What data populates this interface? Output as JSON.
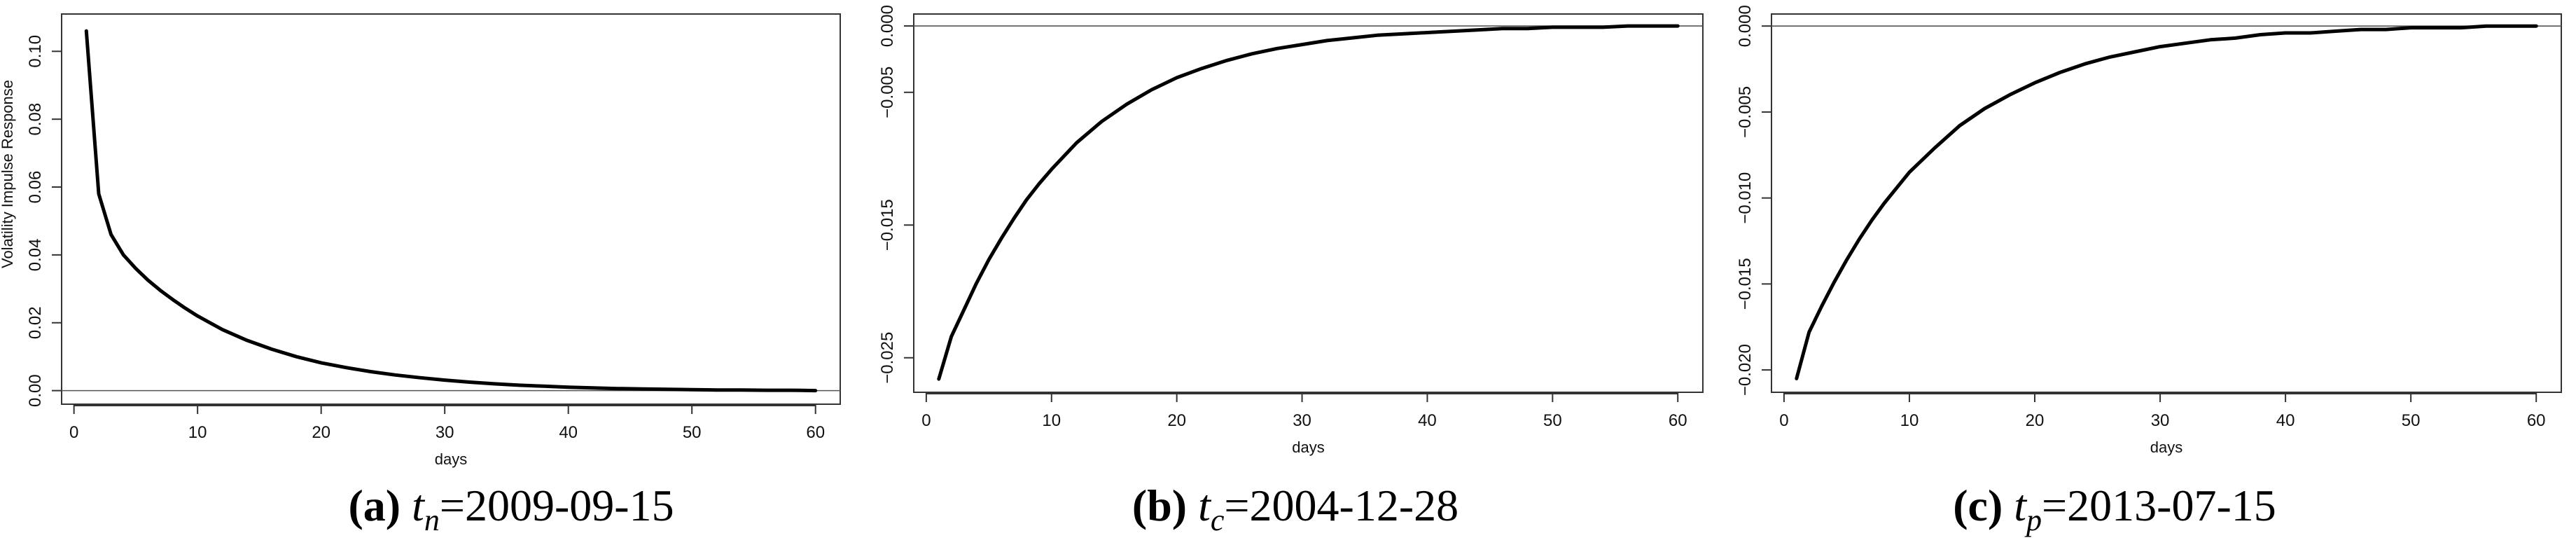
{
  "chart_data": [
    {
      "type": "line",
      "ylabel": "Volatility Impulse Response",
      "xlabel": "days",
      "xlim": [
        -1,
        62
      ],
      "ylim": [
        -0.004,
        0.111
      ],
      "xticks": [
        "0",
        "10",
        "20",
        "30",
        "40",
        "50",
        "60"
      ],
      "xtick_values": [
        0,
        10,
        20,
        30,
        40,
        50,
        60
      ],
      "yticks": [
        "0.00",
        "0.02",
        "0.04",
        "0.06",
        "0.08",
        "0.10"
      ],
      "ytick_values": [
        0,
        0.02,
        0.04,
        0.06,
        0.08,
        0.1
      ],
      "hline": 0,
      "x": [
        1,
        2,
        3,
        4,
        5,
        6,
        7,
        8,
        9,
        10,
        12,
        14,
        16,
        18,
        20,
        22,
        24,
        26,
        28,
        30,
        32,
        34,
        36,
        38,
        40,
        42,
        44,
        46,
        48,
        50,
        52,
        54,
        56,
        58,
        60
      ],
      "values": [
        0.106,
        0.058,
        0.046,
        0.04,
        0.036,
        0.0325,
        0.0295,
        0.0268,
        0.0243,
        0.022,
        0.018,
        0.0148,
        0.0122,
        0.01,
        0.0082,
        0.0068,
        0.0056,
        0.0046,
        0.0038,
        0.0031,
        0.0025,
        0.002,
        0.0016,
        0.0013,
        0.001,
        0.0008,
        0.0006,
        0.0005,
        0.0004,
        0.0003,
        0.0002,
        0.0002,
        0.0001,
        0.0001,
        0.0
      ],
      "caption": {
        "letter": "(a)",
        "var": "t",
        "sub": "n",
        "date": "=2009-09-15"
      }
    },
    {
      "type": "line",
      "ylabel": "",
      "xlabel": "days",
      "xlim": [
        -1,
        62
      ],
      "ylim": [
        -0.0276,
        0.0009
      ],
      "xticks": [
        "0",
        "10",
        "20",
        "30",
        "40",
        "50",
        "60"
      ],
      "xtick_values": [
        0,
        10,
        20,
        30,
        40,
        50,
        60
      ],
      "yticks": [
        "−0.025",
        "−0.015",
        "−0.005",
        "0.000"
      ],
      "ytick_values": [
        -0.025,
        -0.015,
        -0.005,
        0
      ],
      "hline": 0,
      "x": [
        1,
        2,
        3,
        4,
        5,
        6,
        7,
        8,
        9,
        10,
        12,
        14,
        16,
        18,
        20,
        22,
        24,
        26,
        28,
        30,
        32,
        34,
        36,
        38,
        40,
        42,
        44,
        46,
        48,
        50,
        52,
        54,
        56,
        58,
        60
      ],
      "values": [
        -0.0266,
        -0.0234,
        -0.0214,
        -0.0194,
        -0.0176,
        -0.016,
        -0.0145,
        -0.0131,
        -0.0119,
        -0.0108,
        -0.0088,
        -0.0072,
        -0.0059,
        -0.0048,
        -0.0039,
        -0.0032,
        -0.0026,
        -0.0021,
        -0.0017,
        -0.0014,
        -0.0011,
        -0.0009,
        -0.0007,
        -0.0006,
        -0.0005,
        -0.0004,
        -0.0003,
        -0.0002,
        -0.0002,
        -0.0001,
        -0.0001,
        -0.0001,
        0.0,
        0.0,
        0.0
      ],
      "caption": {
        "letter": "(b)",
        "var": "t",
        "sub": "c",
        "date": "=2004-12-28"
      }
    },
    {
      "type": "line",
      "ylabel": "",
      "xlabel": "days",
      "xlim": [
        -1,
        62
      ],
      "ylim": [
        -0.0213,
        0.0007
      ],
      "xticks": [
        "0",
        "10",
        "20",
        "30",
        "40",
        "50",
        "60"
      ],
      "xtick_values": [
        0,
        10,
        20,
        30,
        40,
        50,
        60
      ],
      "yticks": [
        "−0.020",
        "−0.015",
        "−0.010",
        "−0.005",
        "0.000"
      ],
      "ytick_values": [
        -0.02,
        -0.015,
        -0.01,
        -0.005,
        0
      ],
      "hline": 0,
      "x": [
        1,
        2,
        3,
        4,
        5,
        6,
        7,
        8,
        9,
        10,
        12,
        14,
        16,
        18,
        20,
        22,
        24,
        26,
        28,
        30,
        32,
        34,
        36,
        38,
        40,
        42,
        44,
        46,
        48,
        50,
        52,
        54,
        56,
        58,
        60
      ],
      "values": [
        -0.0205,
        -0.0178,
        -0.0163,
        -0.0149,
        -0.0136,
        -0.0124,
        -0.0113,
        -0.0103,
        -0.0094,
        -0.0085,
        -0.0071,
        -0.0058,
        -0.0048,
        -0.004,
        -0.0033,
        -0.0027,
        -0.0022,
        -0.0018,
        -0.0015,
        -0.0012,
        -0.001,
        -0.0008,
        -0.0007,
        -0.0005,
        -0.0004,
        -0.0004,
        -0.0003,
        -0.0002,
        -0.0002,
        -0.0001,
        -0.0001,
        -0.0001,
        0.0,
        0.0,
        0.0
      ],
      "caption": {
        "letter": "(c)",
        "var": "t",
        "sub": "p",
        "date": "=2013-07-15"
      }
    }
  ]
}
